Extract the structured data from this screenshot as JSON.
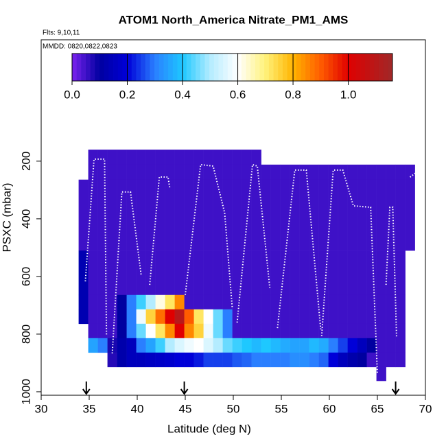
{
  "chart_data": {
    "type": "heatmap",
    "title": "ATOM1 North_America Nitrate_PM1_AMS",
    "subtitle": "Flts: 9,10,11",
    "annotation": "MMDD: 0820,0822,0823",
    "x_label": "Latitude (deg N)",
    "y_label": "PSXC (mbar)",
    "xlim": [
      30,
      70
    ],
    "xticks": [
      30,
      35,
      40,
      45,
      50,
      55,
      60,
      65,
      70
    ],
    "ylim": [
      1012,
      -221
    ],
    "yticks": [
      200,
      400,
      600,
      800,
      1000
    ],
    "xbins": [
      33.9,
      34.9,
      35.9,
      36.9,
      37.9,
      38.9,
      39.9,
      40.9,
      41.9,
      42.9,
      43.9,
      44.9,
      45.9,
      46.9,
      47.9,
      48.9,
      49.9,
      50.9,
      51.9,
      52.9,
      53.9,
      54.9,
      55.9,
      56.9,
      57.9,
      58.9,
      59.9,
      60.9,
      61.9,
      62.9,
      63.9,
      64.9,
      65.9,
      66.9,
      67.9,
      68.9
    ],
    "ybins": [
      160,
      212,
      264,
      510,
      664,
      714,
      764,
      814,
      864,
      914,
      962
    ],
    "z": [
      [
        null,
        0.05,
        0.05,
        0.05,
        0.05,
        0.05,
        0.05,
        0.05,
        0.05,
        0.05,
        0.05,
        0.05,
        0.05,
        0.05,
        0.05,
        0.05,
        0.05,
        0.05,
        0.05,
        null,
        null,
        null,
        null,
        null,
        null,
        null,
        null,
        null,
        null,
        null,
        null,
        null,
        null,
        null,
        null
      ],
      [
        null,
        0.05,
        0.05,
        0.05,
        0.05,
        0.05,
        0.05,
        0.05,
        0.05,
        0.05,
        0.05,
        0.05,
        0.05,
        0.05,
        0.05,
        0.05,
        0.05,
        0.05,
        0.05,
        0.05,
        0.05,
        0.05,
        0.05,
        0.05,
        0.05,
        0.05,
        0.05,
        0.05,
        0.05,
        0.05,
        0.05,
        0.05,
        0.05,
        0.05,
        0.05
      ],
      [
        0.05,
        0.05,
        0.05,
        0.05,
        0.05,
        0.05,
        0.05,
        0.05,
        0.05,
        0.05,
        0.05,
        0.05,
        0.05,
        0.05,
        0.05,
        0.05,
        0.05,
        0.05,
        0.05,
        0.05,
        0.05,
        0.05,
        0.05,
        0.05,
        0.05,
        0.05,
        0.05,
        0.05,
        0.05,
        0.05,
        0.05,
        0.05,
        0.05,
        0.05,
        0.05
      ],
      [
        0.13,
        0.05,
        0.05,
        0.05,
        0.05,
        0.05,
        0.05,
        0.05,
        0.05,
        0.05,
        0.05,
        0.05,
        0.05,
        0.05,
        0.05,
        0.05,
        0.05,
        0.05,
        0.05,
        0.05,
        0.05,
        0.05,
        0.05,
        0.05,
        0.05,
        0.05,
        0.05,
        0.05,
        0.05,
        0.05,
        0.05,
        0.05,
        0.05,
        0.05,
        null
      ],
      [
        0.13,
        0.05,
        0.05,
        0.05,
        0.1,
        0.3,
        0.42,
        0.5,
        0.62,
        0.72,
        0.85,
        0.05,
        0.05,
        0.05,
        0.05,
        0.05,
        0.05,
        0.05,
        0.05,
        0.05,
        0.05,
        0.05,
        0.05,
        0.05,
        0.05,
        0.05,
        0.05,
        0.05,
        0.05,
        0.05,
        0.05,
        0.05,
        0.05,
        0.05,
        null
      ],
      [
        0.13,
        0.05,
        0.05,
        0.05,
        0.1,
        0.3,
        0.58,
        0.75,
        0.88,
        1.0,
        1.1,
        0.9,
        0.72,
        0.6,
        0.45,
        0.3,
        0.05,
        0.05,
        0.05,
        0.05,
        0.05,
        0.05,
        0.05,
        0.05,
        0.05,
        0.05,
        0.05,
        0.05,
        0.05,
        0.05,
        0.05,
        0.05,
        0.05,
        0.05,
        null
      ],
      [
        null,
        0.05,
        0.05,
        0.05,
        0.1,
        0.3,
        0.45,
        0.6,
        0.72,
        0.85,
        1.0,
        0.85,
        0.75,
        0.58,
        0.45,
        0.3,
        0.05,
        0.05,
        0.05,
        0.05,
        0.05,
        0.05,
        0.05,
        0.05,
        0.05,
        0.05,
        0.05,
        0.05,
        0.05,
        0.05,
        0.05,
        0.05,
        0.05,
        0.05,
        null
      ],
      [
        null,
        0.35,
        0.3,
        0.08,
        0.12,
        0.15,
        0.3,
        0.35,
        0.42,
        0.5,
        0.55,
        0.58,
        0.6,
        0.55,
        0.5,
        0.45,
        0.42,
        0.4,
        0.38,
        0.4,
        0.38,
        0.36,
        0.35,
        0.35,
        0.38,
        0.36,
        0.3,
        0.25,
        0.2,
        0.15,
        0.1,
        0.05,
        0.05,
        0.05,
        null
      ],
      [
        null,
        null,
        null,
        0.07,
        0.12,
        0.15,
        0.15,
        0.16,
        0.17,
        0.18,
        0.2,
        0.2,
        0.22,
        0.25,
        0.25,
        0.25,
        0.27,
        0.28,
        0.3,
        0.3,
        0.3,
        0.3,
        0.32,
        0.32,
        0.3,
        0.28,
        0.2,
        0.15,
        0.12,
        0.1,
        0.05,
        0.05,
        0.05,
        0.05,
        null
      ],
      [
        null,
        null,
        null,
        null,
        null,
        null,
        null,
        null,
        null,
        null,
        null,
        null,
        null,
        null,
        null,
        null,
        null,
        null,
        null,
        null,
        null,
        null,
        null,
        null,
        null,
        null,
        null,
        null,
        null,
        null,
        null,
        0.05,
        null,
        null,
        null
      ]
    ],
    "colorscale": [
      [
        0,
        "#7b22ee"
      ],
      [
        0.1,
        "#0000a0"
      ],
      [
        0.2,
        "#0000d8"
      ],
      [
        0.3,
        "#2a7fff"
      ],
      [
        0.4,
        "#1ec8ff"
      ],
      [
        0.5,
        "#b4ecff"
      ],
      [
        0.6,
        "#ffffff"
      ],
      [
        0.7,
        "#fff27a"
      ],
      [
        0.8,
        "#ffb400"
      ],
      [
        0.9,
        "#ff5c00"
      ],
      [
        1.0,
        "#e00000"
      ],
      [
        1.16,
        "#a02828"
      ]
    ],
    "colorbar_lim": [
      0,
      1.16
    ],
    "colorbar_ticks": [
      {
        "value": 0,
        "label": "0.0"
      },
      0.2,
      0.4,
      0.6,
      0.8,
      {
        "value": 1,
        "label": "1.0"
      }
    ],
    "track": {
      "color": "#ffffff",
      "x": [
        34.6,
        35.5,
        36.6,
        36.8,
        null,
        37.4,
        38.4,
        39.3,
        40.4,
        null,
        41.3,
        42.3,
        43.2,
        43.4,
        null,
        45.0,
        46.6,
        47.9,
        49.1,
        49.9,
        null,
        50.4,
        52.0,
        52.5,
        53.8,
        null,
        54.6,
        56.4,
        57.6,
        59.1,
        null,
        59.2,
        60.4,
        61.4,
        62.5,
        64.3,
        65.0,
        null,
        65.9,
        66.3,
        66.6,
        67.0,
        null,
        68.4,
        70.0
      ],
      "y": [
        617,
        193,
        193,
        807,
        null,
        867,
        307,
        307,
        593,
        null,
        629,
        255,
        255,
        295,
        null,
        664,
        212,
        217,
        379,
        712,
        null,
        760,
        212,
        217,
        640,
        null,
        779,
        231,
        231,
        783,
        null,
        807,
        231,
        231,
        355,
        360,
        938,
        null,
        629,
        360,
        360,
        812,
        null,
        255,
        217
      ]
    },
    "arrows": [
      34.7,
      44.9,
      66.9
    ]
  }
}
